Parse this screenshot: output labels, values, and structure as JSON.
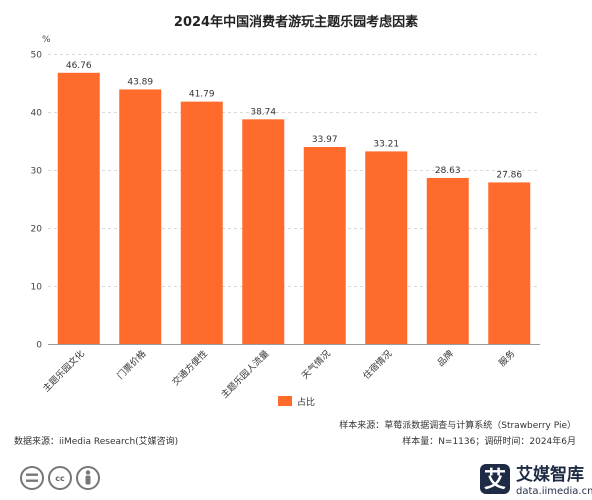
{
  "chart_data": {
    "type": "bar",
    "title": "2024年中国消费者游玩主题乐园考虑因素",
    "yunit": "%",
    "ylim": [
      0,
      50
    ],
    "yticks": [
      0,
      10,
      20,
      30,
      40,
      50
    ],
    "grid": true,
    "categories": [
      "主题乐园文化",
      "门票价格",
      "交通方便性",
      "主题乐园人流量",
      "天气情况",
      "住宿情况",
      "品牌",
      "服务"
    ],
    "series": [
      {
        "name": "占比",
        "values": [
          46.76,
          43.89,
          41.79,
          38.74,
          33.97,
          33.21,
          28.63,
          27.86
        ]
      }
    ],
    "value_labels": [
      "46.76",
      "43.89",
      "41.79",
      "38.74",
      "33.97",
      "33.21",
      "28.63",
      "27.86"
    ],
    "legend_position": "bottom",
    "bar_color": "#ff6b2b"
  },
  "footer": {
    "sample_source": "样本来源：草莓派数据调查与计算系统（Strawberry Pie）",
    "data_source": "数据来源：iiMedia Research(艾媒咨询)",
    "sample_size": "样本量：N=1136；调研时间：2024年6月"
  },
  "brand": {
    "logo_glyph": "艾",
    "name": "艾媒智库",
    "url": "data.iimedia.cn",
    "color": "#1f2a44"
  },
  "license": {
    "cc_glyph": "cc",
    "icons": [
      "equal-icon",
      "cc-icon",
      "person-icon"
    ]
  }
}
